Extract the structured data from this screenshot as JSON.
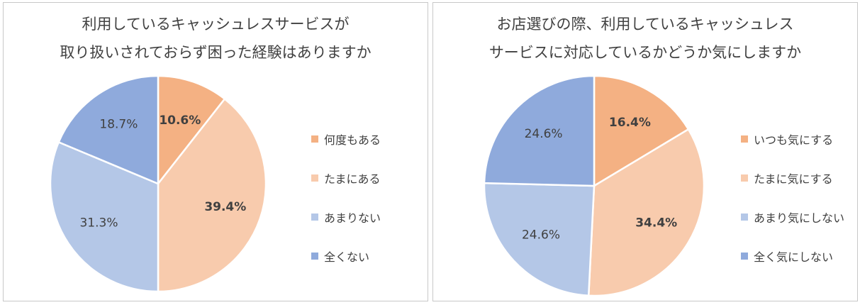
{
  "chart_data": [
    {
      "type": "pie",
      "title_lines": [
        "利用しているキャッシュレスサービスが",
        "取り扱いされておらず困った経験はありますか"
      ],
      "categories": [
        "何度もある",
        "たまにある",
        "あまりない",
        "全くない"
      ],
      "values": [
        10.6,
        39.4,
        31.3,
        18.7
      ],
      "value_labels": [
        "10.6%",
        "39.4%",
        "31.3%",
        "18.7%"
      ],
      "label_bold": [
        true,
        true,
        false,
        false
      ],
      "colors": [
        "#f4b183",
        "#f8cbad",
        "#b4c7e7",
        "#8faadc"
      ],
      "legend_position": "right"
    },
    {
      "type": "pie",
      "title_lines": [
        "お店選びの際、利用しているキャッシュレス",
        "サービスに対応しているかどうか気にしますか"
      ],
      "categories": [
        "いつも気にする",
        "たまに気にする",
        "あまり気にしない",
        "全く気にしない"
      ],
      "values": [
        16.4,
        34.4,
        24.6,
        24.6
      ],
      "value_labels": [
        "16.4%",
        "34.4%",
        "24.6%",
        "24.6%"
      ],
      "label_bold": [
        true,
        true,
        false,
        false
      ],
      "colors": [
        "#f4b183",
        "#f8cbad",
        "#b4c7e7",
        "#8faadc"
      ],
      "legend_position": "right"
    }
  ]
}
